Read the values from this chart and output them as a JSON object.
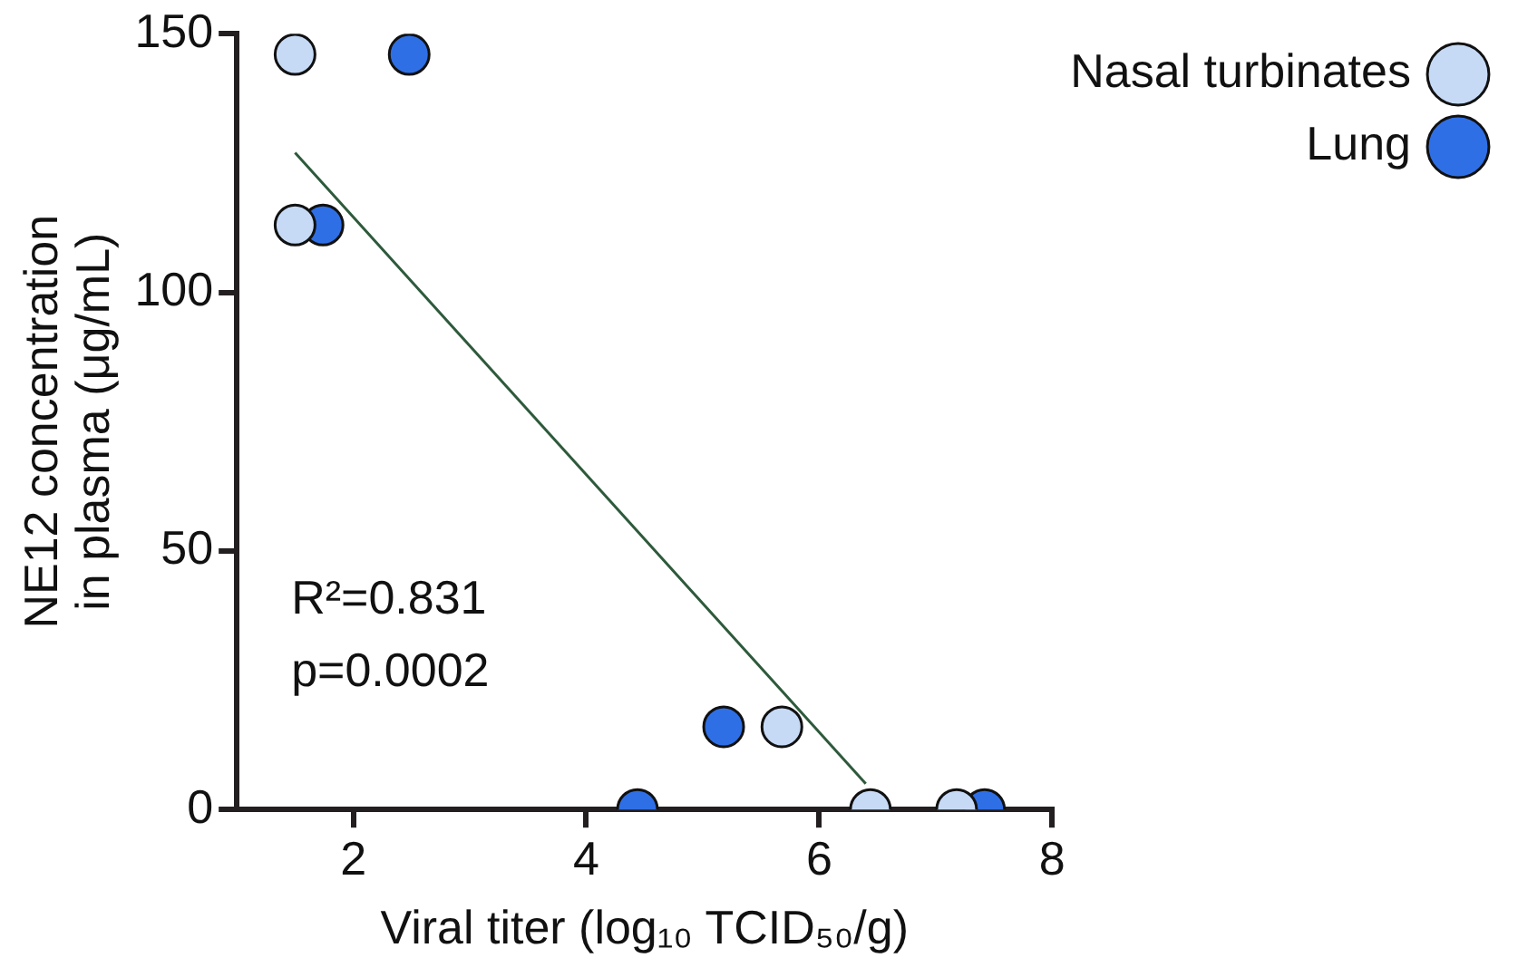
{
  "chart_data": {
    "type": "scatter",
    "xlabel": "Viral titer (log₁₀ TCID₅₀/g)",
    "ylabel": "NE12 concentration\nin plasma (μg/mL)",
    "xlim": [
      1,
      8
    ],
    "xticks": [
      2,
      4,
      6,
      8
    ],
    "ylim": [
      0,
      150
    ],
    "yticks": [
      0,
      50,
      100,
      150
    ],
    "grid": false,
    "legend": "top right",
    "marker": "circle",
    "series": [
      {
        "name": "Nasal turbinates",
        "color": "#c6daf6",
        "x": [
          1.5,
          1.5,
          5.68,
          6.44,
          7.18
        ],
        "values": [
          146,
          113,
          16,
          0,
          0
        ]
      },
      {
        "name": "Lung",
        "color": "#2f6fe6",
        "x": [
          2.48,
          1.74,
          5.18,
          4.44,
          7.42
        ],
        "values": [
          146,
          113,
          16,
          0,
          0
        ]
      },
      {
        "type": "line",
        "marker": "none",
        "color": "#2e5a3c",
        "x": [
          1.5,
          6.4
        ],
        "values": [
          127,
          5
        ]
      }
    ],
    "annotations": [
      "R²=0.831",
      "p=0.0002"
    ]
  }
}
